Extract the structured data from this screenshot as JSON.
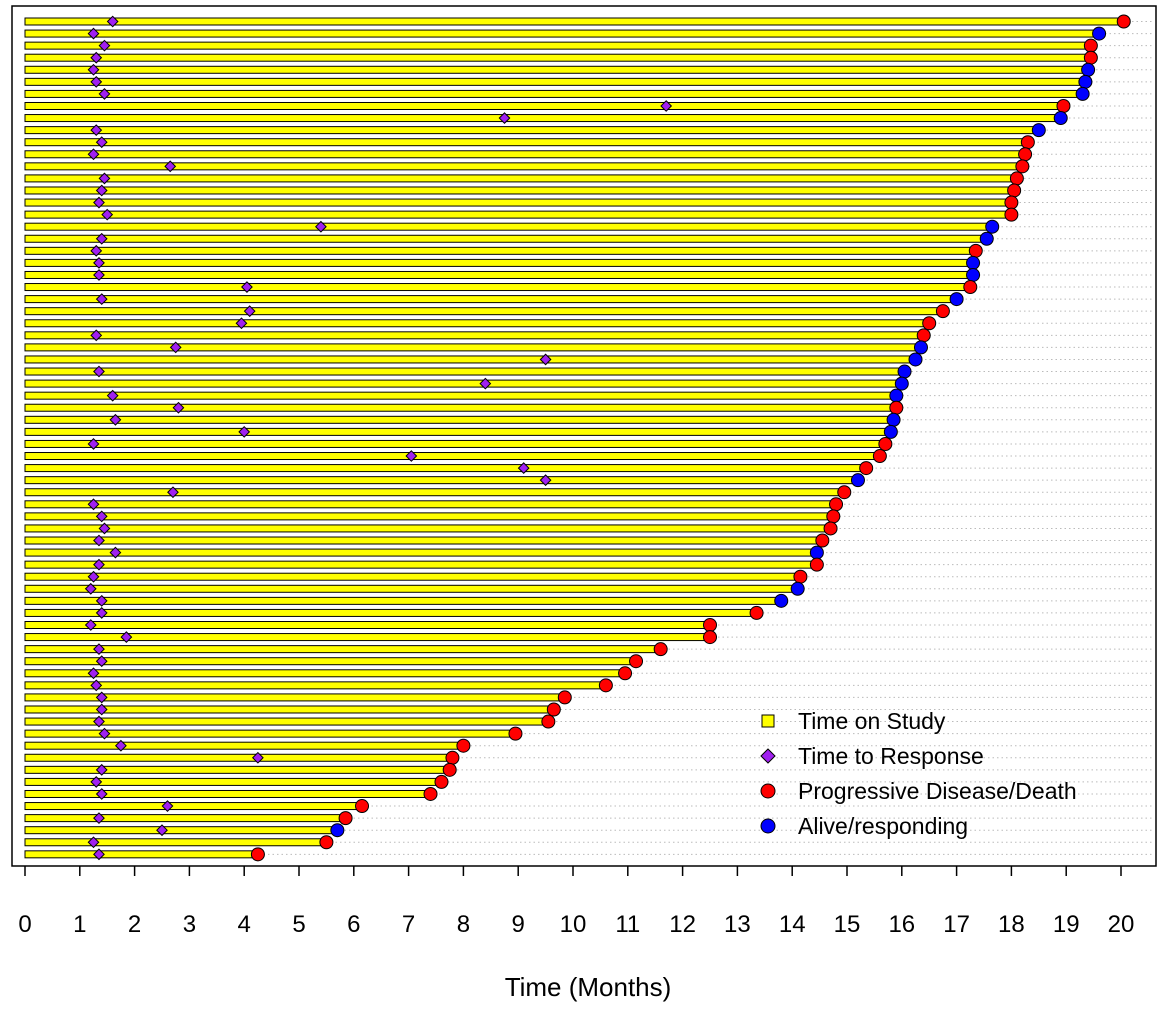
{
  "chart_data": {
    "type": "swimmer",
    "xlabel": "Time (Months)",
    "xlim": [
      0,
      20
    ],
    "x_ticks": [
      0,
      1,
      2,
      3,
      4,
      5,
      6,
      7,
      8,
      9,
      10,
      11,
      12,
      13,
      14,
      15,
      16,
      17,
      18,
      19,
      20
    ],
    "legend": {
      "placement": "bottom-right",
      "items": [
        {
          "label": "Time on Study",
          "marker": "square",
          "color": "#ffff00"
        },
        {
          "label": "Time to Response",
          "marker": "diamond",
          "color": "#a020f0"
        },
        {
          "label": "Progressive Disease/Death",
          "marker": "circle",
          "color": "#ff0000"
        },
        {
          "label": "Alive/responding",
          "marker": "circle",
          "color": "#0000ff"
        }
      ]
    },
    "colors": {
      "bar_fill": "#ffff00",
      "bar_stroke": "#000000",
      "response": "#a020f0",
      "progression": "#ff0000",
      "alive": "#0000ff",
      "dotted_line": "#bbbbbb"
    },
    "subjects": [
      {
        "time": 20.05,
        "status": "PD",
        "responses": [
          1.6
        ]
      },
      {
        "time": 19.6,
        "status": "alive",
        "responses": [
          1.25
        ]
      },
      {
        "time": 19.45,
        "status": "PD",
        "responses": [
          1.45
        ]
      },
      {
        "time": 19.45,
        "status": "PD",
        "responses": [
          1.3
        ]
      },
      {
        "time": 19.4,
        "status": "alive",
        "responses": [
          1.25
        ]
      },
      {
        "time": 19.35,
        "status": "alive",
        "responses": [
          1.3
        ]
      },
      {
        "time": 19.3,
        "status": "alive",
        "responses": [
          1.45
        ]
      },
      {
        "time": 18.95,
        "status": "PD",
        "responses": [
          11.7
        ]
      },
      {
        "time": 18.9,
        "status": "alive",
        "responses": [
          8.75
        ]
      },
      {
        "time": 18.5,
        "status": "alive",
        "responses": [
          1.3
        ]
      },
      {
        "time": 18.3,
        "status": "PD",
        "responses": [
          1.4
        ]
      },
      {
        "time": 18.25,
        "status": "PD",
        "responses": [
          1.25
        ]
      },
      {
        "time": 18.2,
        "status": "PD",
        "responses": [
          2.65
        ]
      },
      {
        "time": 18.1,
        "status": "PD",
        "responses": [
          1.45
        ]
      },
      {
        "time": 18.05,
        "status": "PD",
        "responses": [
          1.4
        ]
      },
      {
        "time": 18.0,
        "status": "PD",
        "responses": [
          1.35
        ]
      },
      {
        "time": 18.0,
        "status": "PD",
        "responses": [
          1.5
        ]
      },
      {
        "time": 17.65,
        "status": "alive",
        "responses": [
          5.4
        ]
      },
      {
        "time": 17.55,
        "status": "alive",
        "responses": [
          1.4
        ]
      },
      {
        "time": 17.35,
        "status": "PD",
        "responses": [
          1.3
        ]
      },
      {
        "time": 17.3,
        "status": "alive",
        "responses": [
          1.35
        ]
      },
      {
        "time": 17.3,
        "status": "alive",
        "responses": [
          1.35
        ]
      },
      {
        "time": 17.25,
        "status": "PD",
        "responses": [
          4.05
        ]
      },
      {
        "time": 17.0,
        "status": "alive",
        "responses": [
          1.4
        ]
      },
      {
        "time": 16.75,
        "status": "PD",
        "responses": [
          4.1
        ]
      },
      {
        "time": 16.5,
        "status": "PD",
        "responses": [
          3.95
        ]
      },
      {
        "time": 16.4,
        "status": "PD",
        "responses": [
          1.3
        ]
      },
      {
        "time": 16.35,
        "status": "alive",
        "responses": [
          2.75
        ]
      },
      {
        "time": 16.25,
        "status": "alive",
        "responses": [
          9.5
        ]
      },
      {
        "time": 16.05,
        "status": "alive",
        "responses": [
          1.35
        ]
      },
      {
        "time": 16.0,
        "status": "alive",
        "responses": [
          8.4
        ]
      },
      {
        "time": 15.9,
        "status": "alive",
        "responses": [
          1.6
        ]
      },
      {
        "time": 15.9,
        "status": "PD",
        "responses": [
          2.8
        ]
      },
      {
        "time": 15.85,
        "status": "alive",
        "responses": [
          1.65
        ]
      },
      {
        "time": 15.8,
        "status": "alive",
        "responses": [
          4.0
        ]
      },
      {
        "time": 15.7,
        "status": "PD",
        "responses": [
          1.25
        ]
      },
      {
        "time": 15.6,
        "status": "PD",
        "responses": [
          7.05
        ]
      },
      {
        "time": 15.35,
        "status": "PD",
        "responses": [
          9.1
        ]
      },
      {
        "time": 15.2,
        "status": "alive",
        "responses": [
          9.5
        ]
      },
      {
        "time": 14.95,
        "status": "PD",
        "responses": [
          2.7
        ]
      },
      {
        "time": 14.8,
        "status": "PD",
        "responses": [
          1.25
        ]
      },
      {
        "time": 14.75,
        "status": "PD",
        "responses": [
          1.4
        ]
      },
      {
        "time": 14.7,
        "status": "PD",
        "responses": [
          1.45
        ]
      },
      {
        "time": 14.55,
        "status": "PD",
        "responses": [
          1.35
        ]
      },
      {
        "time": 14.45,
        "status": "alive",
        "responses": [
          1.65
        ]
      },
      {
        "time": 14.45,
        "status": "PD",
        "responses": [
          1.35
        ]
      },
      {
        "time": 14.15,
        "status": "PD",
        "responses": [
          1.25
        ]
      },
      {
        "time": 14.1,
        "status": "alive",
        "responses": [
          1.2
        ]
      },
      {
        "time": 13.8,
        "status": "alive",
        "responses": [
          1.4
        ]
      },
      {
        "time": 13.35,
        "status": "PD",
        "responses": [
          1.4
        ]
      },
      {
        "time": 12.5,
        "status": "PD",
        "responses": [
          1.2
        ]
      },
      {
        "time": 12.5,
        "status": "PD",
        "responses": [
          1.85
        ]
      },
      {
        "time": 11.6,
        "status": "PD",
        "responses": [
          1.35
        ]
      },
      {
        "time": 11.15,
        "status": "PD",
        "responses": [
          1.4
        ]
      },
      {
        "time": 10.95,
        "status": "PD",
        "responses": [
          1.25
        ]
      },
      {
        "time": 10.6,
        "status": "PD",
        "responses": [
          1.3
        ]
      },
      {
        "time": 9.85,
        "status": "PD",
        "responses": [
          1.4
        ]
      },
      {
        "time": 9.65,
        "status": "PD",
        "responses": [
          1.4
        ]
      },
      {
        "time": 9.55,
        "status": "PD",
        "responses": [
          1.35
        ]
      },
      {
        "time": 8.95,
        "status": "PD",
        "responses": [
          1.45
        ]
      },
      {
        "time": 8.0,
        "status": "PD",
        "responses": [
          1.75
        ]
      },
      {
        "time": 7.8,
        "status": "PD",
        "responses": [
          4.25
        ]
      },
      {
        "time": 7.75,
        "status": "PD",
        "responses": [
          1.4
        ]
      },
      {
        "time": 7.6,
        "status": "PD",
        "responses": [
          1.3
        ]
      },
      {
        "time": 7.4,
        "status": "PD",
        "responses": [
          1.4
        ]
      },
      {
        "time": 6.15,
        "status": "PD",
        "responses": [
          2.6
        ]
      },
      {
        "time": 5.85,
        "status": "PD",
        "responses": [
          1.35
        ]
      },
      {
        "time": 5.7,
        "status": "alive",
        "responses": [
          2.5
        ]
      },
      {
        "time": 5.5,
        "status": "PD",
        "responses": [
          1.25
        ]
      },
      {
        "time": 4.25,
        "status": "PD",
        "responses": [
          1.35
        ]
      }
    ]
  }
}
